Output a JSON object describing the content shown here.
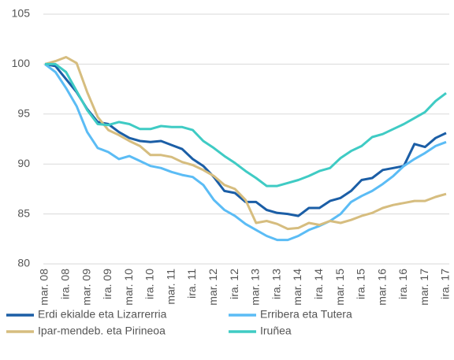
{
  "chart_data": {
    "type": "line",
    "categories": [
      "mar. 08",
      null,
      "ira. 08",
      null,
      "mar. 09",
      null,
      "ira. 09",
      null,
      "mar. 10",
      null,
      "ira. 10",
      null,
      "mar. 11",
      null,
      "ira. 11",
      null,
      "mar. 12",
      null,
      "ira. 12",
      null,
      "mar. 13",
      null,
      "ira. 13",
      null,
      "mar. 14",
      null,
      "ira. 14",
      null,
      "mar. 15",
      null,
      "ira. 15",
      null,
      "mar. 16",
      null,
      "ira. 16",
      null,
      "mar. 17",
      null,
      "ira. 17"
    ],
    "series": [
      {
        "name": "Erdi ekialde eta Lizarrerria",
        "color": "#1b5ea6",
        "values": [
          100,
          99.8,
          98.5,
          97.2,
          95.5,
          94.2,
          94,
          93.2,
          92.6,
          92.3,
          92.2,
          92.3,
          91.9,
          91.5,
          90.5,
          89.8,
          88.7,
          87.3,
          87.1,
          86.2,
          86.2,
          85.4,
          85.1,
          85,
          84.8,
          85.6,
          85.6,
          86.3,
          86.6,
          87.3,
          88.4,
          88.6,
          89.4,
          89.6,
          89.8,
          92,
          91.7,
          92.6,
          93.1
        ]
      },
      {
        "name": "Erribera eta Tutera",
        "color": "#5bbcf5",
        "values": [
          100,
          99.2,
          97.6,
          95.8,
          93.2,
          91.6,
          91.2,
          90.5,
          90.8,
          90.3,
          89.8,
          89.6,
          89.2,
          88.9,
          88.7,
          87.9,
          86.4,
          85.4,
          84.8,
          84,
          83.4,
          82.8,
          82.4,
          82.4,
          82.8,
          83.4,
          83.8,
          84.3,
          85,
          86.2,
          86.8,
          87.3,
          88,
          88.8,
          89.8,
          90.5,
          91.1,
          91.8,
          92.2
        ]
      },
      {
        "name": "Ipar-mendeb. eta Pirineoa",
        "color": "#d6bd7f",
        "values": [
          100,
          100.3,
          100.7,
          100.1,
          97.2,
          94.7,
          93.4,
          92.9,
          92.3,
          91.8,
          90.9,
          90.9,
          90.7,
          90.2,
          89.9,
          89.4,
          88.8,
          87.9,
          87.5,
          86.4,
          84.1,
          84.3,
          84,
          83.5,
          83.6,
          84.1,
          83.9,
          84.3,
          84.1,
          84.4,
          84.8,
          85.1,
          85.6,
          85.9,
          86.1,
          86.3,
          86.3,
          86.7,
          87
        ]
      },
      {
        "name": "Iruñea",
        "color": "#3fcbc4",
        "values": [
          100,
          100,
          99.2,
          97.3,
          95.4,
          94,
          93.9,
          94.2,
          94,
          93.5,
          93.5,
          93.8,
          93.7,
          93.7,
          93.4,
          92.3,
          91.6,
          90.8,
          90.1,
          89.3,
          88.6,
          87.8,
          87.8,
          88.1,
          88.4,
          88.8,
          89.3,
          89.6,
          90.6,
          91.3,
          91.8,
          92.7,
          93,
          93.5,
          94,
          94.6,
          95.2,
          96.3,
          97.1
        ]
      }
    ],
    "ylim": [
      80,
      105
    ],
    "yticks": [
      80,
      85,
      90,
      95,
      100,
      105
    ],
    "grid": true
  }
}
